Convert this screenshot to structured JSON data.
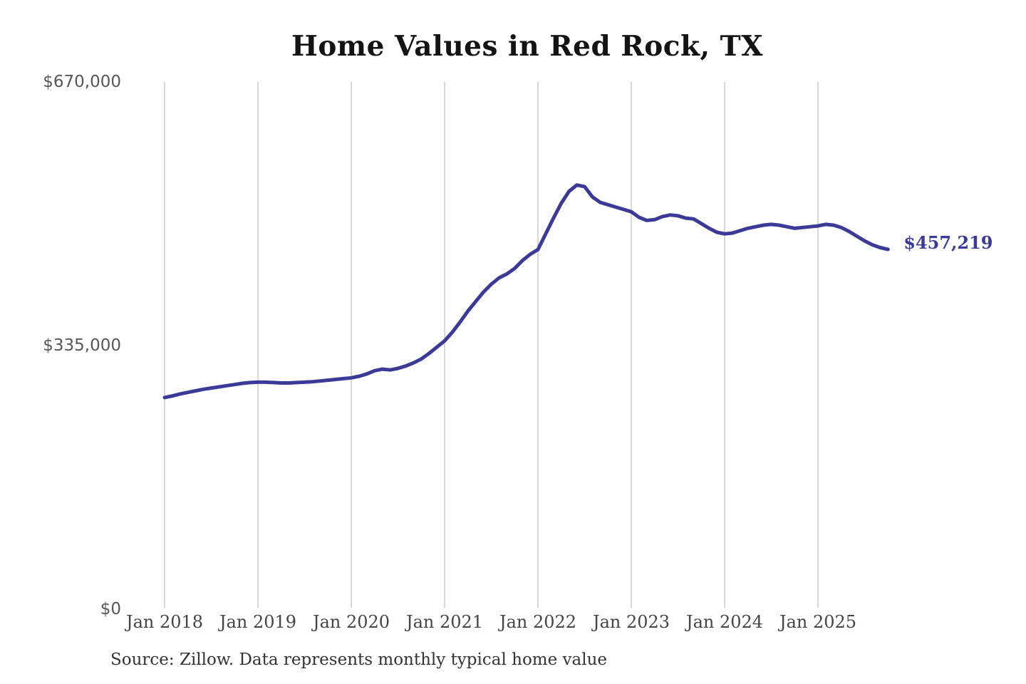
{
  "source_note": "Source: Zillow. Data represents monthly typical home value",
  "colors": {
    "line": "#3b3a98",
    "grid": "#cccccc",
    "title": "#141414",
    "y_labels": "#575757",
    "x_labels": "#454545",
    "source": "#333333",
    "end_label": "#3b3a98",
    "background": "#ffffff"
  },
  "chart_data": {
    "type": "line",
    "title": "Home Values in Red Rock, TX",
    "xlabel": "",
    "ylabel": "",
    "ylim": [
      0,
      670000
    ],
    "grid": "vertical",
    "legend": "none",
    "x_unit": "month",
    "x_range": [
      "Jan 2018",
      "Oct 2025"
    ],
    "x_ticks": [
      "Jan 2018",
      "Jan 2019",
      "Jan 2020",
      "Jan 2021",
      "Jan 2022",
      "Jan 2023",
      "Jan 2024",
      "Jan 2025"
    ],
    "x_tick_month_indices": [
      0,
      12,
      24,
      36,
      48,
      60,
      72,
      84
    ],
    "y_ticks": [
      {
        "label": "$670,000",
        "value": 670000
      },
      {
        "label": "$335,000",
        "value": 335000
      },
      {
        "label": "$0",
        "value": 0
      }
    ],
    "end_annotation": {
      "label": "$457,219",
      "value": 457219
    },
    "series": [
      {
        "name": "Monthly typical home value",
        "start": "Jan 2018",
        "values": [
          269000,
          271000,
          273500,
          275500,
          277500,
          279500,
          281000,
          282500,
          284000,
          285500,
          287000,
          288000,
          288500,
          288500,
          288000,
          287500,
          287500,
          288000,
          288500,
          289000,
          290000,
          291000,
          292000,
          293000,
          294000,
          296000,
          299000,
          303000,
          305000,
          304000,
          306000,
          309000,
          313000,
          318000,
          325000,
          333000,
          341000,
          352000,
          365000,
          379000,
          391000,
          403000,
          413000,
          421000,
          426000,
          433000,
          443000,
          451000,
          457000,
          477000,
          497000,
          516000,
          531000,
          539000,
          537000,
          524000,
          517000,
          514000,
          511000,
          508000,
          505000,
          498000,
          494000,
          495000,
          499000,
          501000,
          500000,
          497000,
          496000,
          490000,
          484000,
          479000,
          477000,
          478000,
          481000,
          484000,
          486000,
          488000,
          489000,
          488000,
          486000,
          484000,
          485000,
          486000,
          487000,
          489000,
          488000,
          485000,
          480000,
          474000,
          468000,
          463000,
          459500,
          457219
        ]
      }
    ]
  }
}
